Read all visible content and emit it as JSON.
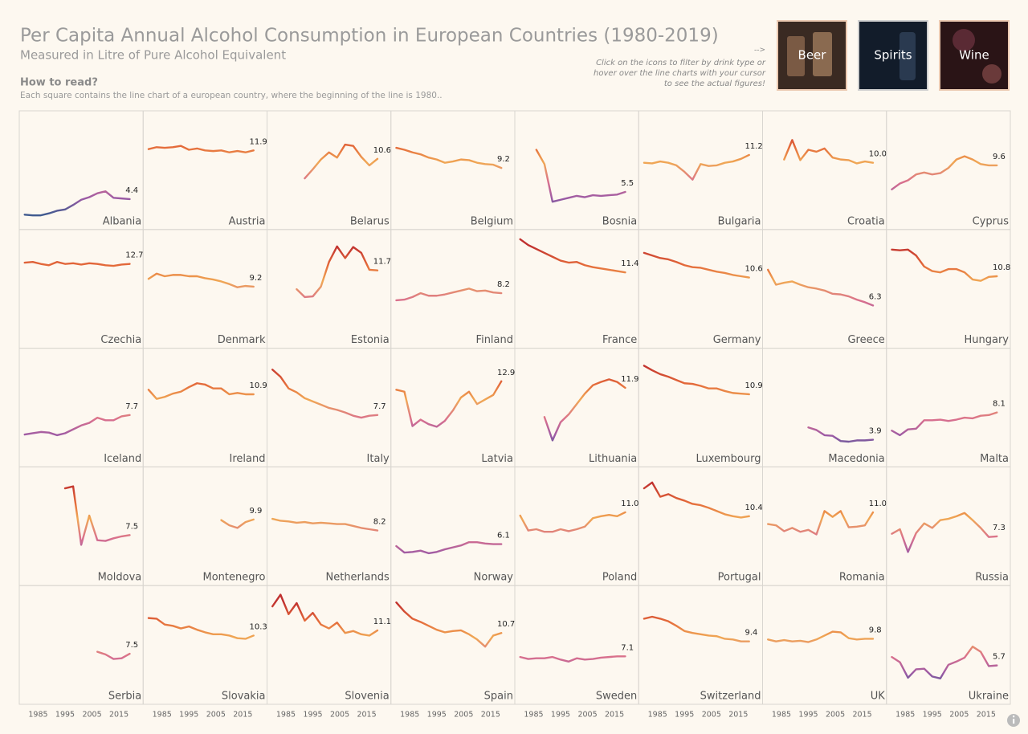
{
  "header": {
    "hint_arrow": "-->",
    "hint_lines": [
      "Click on the icons to filter by drink type or",
      "hover over the line charts with your cursor",
      "to see the actual figures!"
    ],
    "filters": [
      "Beer",
      "Spirits",
      "Wine"
    ]
  },
  "chart_data": {
    "type": "line",
    "title": "Per Capita Annual Alcohol Consumption in European Countries (1980-2019)",
    "subtitle": "Measured in Litre of Pure Alcohol Equivalent",
    "how_to_read": {
      "title": "How to read?",
      "text": "Each square contains the line chart of a european country, where the beginning of the line is 1980.."
    },
    "x": [
      1980,
      1983,
      1986,
      1989,
      1992,
      1995,
      1998,
      2001,
      2004,
      2007,
      2010,
      2013,
      2016,
      2019
    ],
    "xlim": [
      1978,
      2024
    ],
    "xticks": [
      1985,
      1995,
      2005,
      2015
    ],
    "ylim": [
      0,
      18
    ],
    "color_scale": [
      {
        "value": 2,
        "color": "#3f5a8f"
      },
      {
        "value": 4.5,
        "color": "#9b5aa5"
      },
      {
        "value": 7,
        "color": "#d9708e"
      },
      {
        "value": 10,
        "color": "#f0a855"
      },
      {
        "value": 12.5,
        "color": "#e46a3a"
      },
      {
        "value": 15.5,
        "color": "#c0302e"
      }
    ],
    "series": [
      {
        "name": "Albania",
        "end_label": "4.4",
        "values": [
          2.0,
          1.9,
          1.9,
          2.2,
          2.6,
          2.8,
          3.5,
          4.3,
          4.7,
          5.3,
          5.6,
          4.6,
          4.5,
          4.4
        ]
      },
      {
        "name": "Austria",
        "end_label": "11.9",
        "values": [
          12.1,
          12.4,
          12.3,
          12.4,
          12.6,
          12.0,
          12.2,
          11.9,
          11.8,
          11.9,
          11.6,
          11.8,
          11.6,
          11.9
        ]
      },
      {
        "name": "Belarus",
        "end_label": "10.6",
        "values": [
          null,
          null,
          null,
          null,
          7.6,
          9.0,
          10.5,
          11.6,
          10.8,
          12.8,
          12.6,
          10.9,
          9.6,
          10.6
        ]
      },
      {
        "name": "Belgium",
        "end_label": "9.2",
        "values": [
          12.3,
          12.0,
          11.6,
          11.3,
          10.8,
          10.5,
          10.0,
          10.2,
          10.5,
          10.4,
          10.0,
          9.8,
          9.7,
          9.2
        ]
      },
      {
        "name": "Bosnia",
        "end_label": "5.5",
        "values": [
          null,
          null,
          12.0,
          9.8,
          4.0,
          4.3,
          4.6,
          4.9,
          4.7,
          5.0,
          4.9,
          5.0,
          5.1,
          5.5
        ]
      },
      {
        "name": "Bulgaria",
        "end_label": "11.2",
        "values": [
          10.0,
          9.9,
          10.2,
          10.0,
          9.6,
          8.6,
          7.4,
          9.8,
          9.5,
          9.6,
          10.0,
          10.2,
          10.6,
          11.2
        ]
      },
      {
        "name": "Croatia",
        "end_label": "10.0",
        "values": [
          null,
          null,
          10.5,
          13.5,
          10.4,
          12.0,
          11.7,
          12.2,
          10.8,
          10.5,
          10.4,
          9.9,
          10.2,
          10.0
        ]
      },
      {
        "name": "Cyprus",
        "end_label": "9.6",
        "values": [
          5.9,
          6.8,
          7.3,
          8.2,
          8.5,
          8.2,
          8.4,
          9.2,
          10.5,
          11.0,
          10.5,
          9.8,
          9.6,
          9.6
        ]
      },
      {
        "name": "Czechia",
        "end_label": "12.7",
        "values": [
          12.9,
          13.0,
          12.7,
          12.5,
          13.0,
          12.7,
          12.8,
          12.6,
          12.8,
          12.7,
          12.5,
          12.4,
          12.6,
          12.7
        ]
      },
      {
        "name": "Denmark",
        "end_label": "9.2",
        "values": [
          10.4,
          11.2,
          10.8,
          11.0,
          11.0,
          10.8,
          10.8,
          10.5,
          10.3,
          10.0,
          9.6,
          9.1,
          9.3,
          9.2
        ]
      },
      {
        "name": "Estonia",
        "end_label": "11.7",
        "values": [
          null,
          null,
          null,
          8.8,
          7.6,
          7.7,
          9.2,
          13.0,
          15.4,
          13.6,
          15.3,
          14.4,
          11.8,
          11.7
        ]
      },
      {
        "name": "Finland",
        "end_label": "8.2",
        "values": [
          7.1,
          7.2,
          7.6,
          8.2,
          7.8,
          7.8,
          8.0,
          8.3,
          8.6,
          8.9,
          8.5,
          8.6,
          8.3,
          8.2
        ]
      },
      {
        "name": "France",
        "end_label": "11.4",
        "values": [
          16.5,
          15.6,
          15.0,
          14.4,
          13.8,
          13.2,
          12.9,
          13.0,
          12.5,
          12.2,
          12.0,
          11.8,
          11.6,
          11.4
        ]
      },
      {
        "name": "Germany",
        "end_label": "10.6",
        "values": [
          14.4,
          14.0,
          13.6,
          13.4,
          13.0,
          12.5,
          12.2,
          12.1,
          11.8,
          11.5,
          11.3,
          11.0,
          10.8,
          10.6
        ]
      },
      {
        "name": "Greece",
        "end_label": "6.3",
        "values": [
          11.8,
          9.5,
          9.8,
          10.0,
          9.5,
          9.1,
          8.9,
          8.6,
          8.1,
          8.0,
          7.7,
          7.2,
          6.8,
          6.3
        ]
      },
      {
        "name": "Hungary",
        "end_label": "10.8",
        "values": [
          14.9,
          14.8,
          14.9,
          14.0,
          12.3,
          11.6,
          11.4,
          11.9,
          11.9,
          11.4,
          10.3,
          10.1,
          10.7,
          10.8
        ]
      },
      {
        "name": "Iceland",
        "end_label": "7.7",
        "values": [
          4.7,
          4.9,
          5.1,
          5.0,
          4.6,
          4.9,
          5.5,
          6.1,
          6.5,
          7.3,
          6.9,
          6.9,
          7.5,
          7.7
        ]
      },
      {
        "name": "Ireland",
        "end_label": "10.9",
        "values": [
          11.6,
          10.2,
          10.5,
          11.0,
          11.3,
          12.0,
          12.6,
          12.4,
          11.8,
          11.8,
          10.9,
          11.1,
          10.9,
          10.9
        ]
      },
      {
        "name": "Italy",
        "end_label": "7.7",
        "values": [
          14.7,
          13.6,
          11.8,
          11.2,
          10.3,
          9.8,
          9.3,
          8.8,
          8.5,
          8.1,
          7.6,
          7.3,
          7.6,
          7.7
        ]
      },
      {
        "name": "Latvia",
        "end_label": "12.9",
        "values": [
          11.6,
          11.3,
          6.0,
          7.0,
          6.3,
          5.9,
          6.8,
          8.4,
          10.4,
          11.3,
          9.4,
          10.1,
          10.8,
          12.9
        ]
      },
      {
        "name": "Lithuania",
        "end_label": "11.9",
        "values": [
          null,
          null,
          null,
          7.4,
          3.8,
          6.6,
          7.8,
          9.4,
          11.0,
          12.3,
          12.8,
          13.2,
          12.8,
          11.9
        ]
      },
      {
        "name": "Luxembourg",
        "end_label": "10.9",
        "values": [
          15.3,
          14.6,
          14.0,
          13.6,
          13.1,
          12.6,
          12.5,
          12.2,
          11.8,
          11.8,
          11.4,
          11.1,
          11.0,
          10.9
        ]
      },
      {
        "name": "Macedonia",
        "end_label": "3.9",
        "values": [
          null,
          null,
          null,
          null,
          null,
          5.8,
          5.4,
          4.6,
          4.5,
          3.7,
          3.6,
          3.8,
          3.8,
          3.9
        ]
      },
      {
        "name": "Malta",
        "end_label": "8.1",
        "values": [
          5.3,
          4.6,
          5.5,
          5.6,
          6.9,
          6.9,
          7.0,
          6.8,
          7.0,
          7.3,
          7.2,
          7.6,
          7.7,
          8.1
        ]
      },
      {
        "name": "Moldova",
        "end_label": "7.5",
        "values": [
          null,
          null,
          null,
          null,
          null,
          14.7,
          15.0,
          6.0,
          10.5,
          6.7,
          6.6,
          7.0,
          7.3,
          7.5
        ]
      },
      {
        "name": "Montenegro",
        "end_label": "9.9",
        "values": [
          null,
          null,
          null,
          null,
          null,
          null,
          null,
          null,
          null,
          9.8,
          9.0,
          8.6,
          9.5,
          9.9
        ]
      },
      {
        "name": "Netherlands",
        "end_label": "8.2",
        "values": [
          10.0,
          9.7,
          9.6,
          9.4,
          9.5,
          9.3,
          9.4,
          9.3,
          9.2,
          9.2,
          8.9,
          8.6,
          8.4,
          8.2
        ]
      },
      {
        "name": "Norway",
        "end_label": "6.1",
        "values": [
          5.8,
          4.8,
          4.9,
          5.1,
          4.7,
          4.9,
          5.3,
          5.6,
          5.9,
          6.4,
          6.4,
          6.2,
          6.1,
          6.1
        ]
      },
      {
        "name": "Poland",
        "end_label": "11.0",
        "values": [
          10.5,
          8.2,
          8.4,
          8.0,
          8.0,
          8.4,
          8.1,
          8.4,
          8.8,
          10.1,
          10.4,
          10.6,
          10.4,
          11.0
        ]
      },
      {
        "name": "Portugal",
        "end_label": "10.4",
        "values": [
          14.7,
          15.6,
          13.4,
          13.8,
          13.2,
          12.8,
          12.3,
          12.1,
          11.7,
          11.2,
          10.7,
          10.4,
          10.2,
          10.4
        ]
      },
      {
        "name": "Romania",
        "end_label": "11.0",
        "values": [
          9.2,
          9.0,
          8.1,
          8.6,
          8.0,
          8.3,
          7.6,
          11.2,
          10.3,
          11.2,
          8.7,
          8.8,
          9.0,
          11.0
        ]
      },
      {
        "name": "Russia",
        "end_label": "7.3",
        "values": [
          7.7,
          8.4,
          4.9,
          7.8,
          9.3,
          8.6,
          9.8,
          10.0,
          10.4,
          10.9,
          9.8,
          8.6,
          7.2,
          7.3
        ]
      },
      {
        "name": "Serbia",
        "end_label": "7.5",
        "values": [
          null,
          null,
          null,
          null,
          null,
          null,
          null,
          null,
          null,
          7.8,
          7.4,
          6.7,
          6.8,
          7.5
        ]
      },
      {
        "name": "Slovakia",
        "end_label": "10.3",
        "values": [
          13.0,
          12.9,
          12.0,
          11.8,
          11.4,
          11.7,
          11.2,
          10.8,
          10.5,
          10.5,
          10.3,
          9.9,
          9.8,
          10.3
        ]
      },
      {
        "name": "Slovenia",
        "end_label": "11.1",
        "values": [
          14.8,
          16.6,
          13.6,
          15.3,
          12.6,
          13.8,
          12.0,
          11.4,
          12.3,
          10.7,
          11.0,
          10.5,
          10.3,
          11.1
        ]
      },
      {
        "name": "Spain",
        "end_label": "10.7",
        "values": [
          15.4,
          14.0,
          12.9,
          12.4,
          11.8,
          11.2,
          10.8,
          11.0,
          11.1,
          10.5,
          9.7,
          8.6,
          10.3,
          10.7
        ]
      },
      {
        "name": "Sweden",
        "end_label": "7.1",
        "values": [
          7.0,
          6.7,
          6.8,
          6.8,
          7.0,
          6.6,
          6.3,
          6.8,
          6.6,
          6.7,
          6.9,
          7.0,
          7.1,
          7.1
        ]
      },
      {
        "name": "Switzerland",
        "end_label": "9.4",
        "values": [
          12.9,
          13.2,
          12.9,
          12.5,
          11.8,
          11.0,
          10.7,
          10.5,
          10.3,
          10.2,
          9.8,
          9.7,
          9.4,
          9.4
        ]
      },
      {
        "name": "UK",
        "end_label": "9.8",
        "values": [
          9.7,
          9.4,
          9.6,
          9.4,
          9.5,
          9.3,
          9.7,
          10.3,
          10.9,
          10.8,
          9.9,
          9.7,
          9.8,
          9.8
        ]
      },
      {
        "name": "Ukraine",
        "end_label": "5.7",
        "values": [
          7.0,
          6.2,
          3.8,
          5.1,
          5.2,
          4.0,
          3.7,
          5.8,
          6.3,
          6.9,
          8.6,
          7.8,
          5.6,
          5.7
        ]
      }
    ]
  }
}
